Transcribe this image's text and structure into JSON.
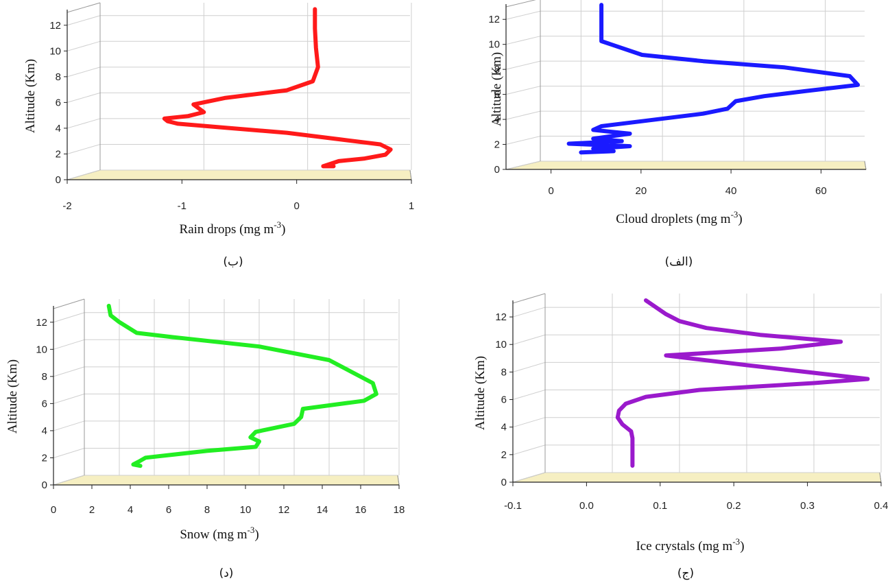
{
  "chart_data": [
    {
      "type": "line",
      "panel_label": "(ب)",
      "xlabel": "Rain drops (mg m",
      "xlabel_sup": "-3",
      "xlabel_close": ")",
      "ylabel": "Altitude (Km)",
      "xlim": [
        -2,
        1
      ],
      "ylim": [
        0,
        13
      ],
      "xticks": [
        "-2",
        "-1",
        "0",
        "1"
      ],
      "xtick_values": [
        -2,
        -1,
        0,
        1
      ],
      "yticks": [
        "0",
        "2",
        "4",
        "6",
        "8",
        "10",
        "12"
      ],
      "ytick_values": [
        0,
        2,
        4,
        6,
        8,
        10,
        12
      ],
      "line_color": "#ff1a1a",
      "series": [
        {
          "x": [
            0.25,
            0.15,
            0.3,
            0.55,
            0.75,
            0.8,
            0.7,
            0.3,
            -0.2,
            -0.8,
            -1.25,
            -1.35,
            -1.38,
            -1.15,
            -1.0,
            -1.1,
            -0.8,
            -0.2,
            0.05,
            0.1,
            0.08,
            0.07,
            0.07
          ],
          "y": [
            0.3,
            0.3,
            0.7,
            0.9,
            1.2,
            1.6,
            2.0,
            2.4,
            2.9,
            3.3,
            3.6,
            3.8,
            4.0,
            4.2,
            4.5,
            5.1,
            5.6,
            6.2,
            6.9,
            8.0,
            9.5,
            11.0,
            12.5
          ]
        }
      ]
    },
    {
      "type": "line",
      "panel_label": "(الف)",
      "xlabel": "Cloud droplets (mg m",
      "xlabel_sup": "-3",
      "xlabel_close": ")",
      "ylabel": "Altitude (Km)",
      "xlim": [
        -10,
        70
      ],
      "ylim": [
        0,
        13
      ],
      "xticks": [
        "0",
        "20",
        "40",
        "60"
      ],
      "xtick_values": [
        0,
        20,
        40,
        60
      ],
      "yticks": [
        "0",
        "2",
        "4",
        "6",
        "8",
        "10",
        "12"
      ],
      "ytick_values": [
        0,
        2,
        4,
        6,
        8,
        10,
        12
      ],
      "line_color": "#1a1aff",
      "series": [
        {
          "x": [
            0,
            8,
            3,
            12,
            -3,
            10,
            3,
            12,
            3,
            5,
            15,
            30,
            36,
            38,
            45,
            55,
            68,
            66,
            50,
            30,
            15,
            5,
            5,
            5
          ],
          "y": [
            0.7,
            0.8,
            1.0,
            1.2,
            1.4,
            1.6,
            1.8,
            2.2,
            2.5,
            2.8,
            3.2,
            3.8,
            4.2,
            4.8,
            5.2,
            5.6,
            6.1,
            6.8,
            7.5,
            8.0,
            8.5,
            9.6,
            11.0,
            12.5
          ]
        }
      ]
    },
    {
      "type": "line",
      "panel_label": "(د)",
      "xlabel": "Snow (mg m",
      "xlabel_sup": "-3",
      "xlabel_close": ")",
      "ylabel": "Altitude (Km)",
      "xlim": [
        0,
        18
      ],
      "ylim": [
        0,
        13
      ],
      "xticks": [
        "0",
        "2",
        "4",
        "6",
        "8",
        "10",
        "12",
        "14",
        "16",
        "18"
      ],
      "xtick_values": [
        0,
        2,
        4,
        6,
        8,
        10,
        12,
        14,
        16,
        18
      ],
      "yticks": [
        "0",
        "2",
        "4",
        "6",
        "8",
        "10",
        "12"
      ],
      "ytick_values": [
        0,
        2,
        4,
        6,
        8,
        10,
        12
      ],
      "line_color": "#22ee22",
      "series": [
        {
          "x": [
            3.2,
            2.8,
            3.1,
            3.5,
            7.0,
            9.8,
            10.0,
            9.5,
            9.8,
            12.0,
            12.4,
            12.5,
            16.0,
            16.7,
            16.5,
            14.0,
            10.0,
            5.0,
            3.0,
            2.0,
            1.5,
            1.4
          ],
          "y": [
            0.7,
            0.8,
            1.0,
            1.3,
            1.8,
            2.1,
            2.5,
            2.8,
            3.2,
            3.8,
            4.3,
            4.9,
            5.5,
            6.0,
            6.8,
            8.5,
            9.5,
            10.2,
            10.5,
            11.3,
            11.8,
            12.5
          ]
        }
      ]
    },
    {
      "type": "line",
      "panel_label": "(ج)",
      "xlabel": "Ice crystals (mg m",
      "xlabel_sup": "-3",
      "xlabel_close": ")",
      "ylabel": "Altitude (Km)",
      "xlim": [
        -0.1,
        0.4
      ],
      "ylim": [
        0,
        13
      ],
      "xticks": [
        "-0.1",
        "0.0",
        "0.1",
        "0.2",
        "0.3",
        "0.4"
      ],
      "xtick_values": [
        -0.1,
        0.0,
        0.1,
        0.2,
        0.3,
        0.4
      ],
      "yticks": [
        "0",
        "2",
        "4",
        "6",
        "8",
        "10",
        "12"
      ],
      "ytick_values": [
        0,
        2,
        4,
        6,
        8,
        10,
        12
      ],
      "line_color": "#9a1acc",
      "series": [
        {
          "x": [
            0.03,
            0.03,
            0.03,
            0.028,
            0.015,
            0.008,
            0.01,
            0.02,
            0.05,
            0.13,
            0.3,
            0.38,
            0.2,
            0.08,
            0.25,
            0.34,
            0.22,
            0.14,
            0.1,
            0.08,
            0.05
          ],
          "y": [
            0.5,
            1.5,
            2.5,
            3.0,
            3.5,
            4.0,
            4.5,
            5.0,
            5.5,
            6.0,
            6.5,
            6.8,
            7.8,
            8.5,
            9.0,
            9.5,
            10.0,
            10.5,
            11.0,
            11.5,
            12.5
          ]
        }
      ]
    }
  ]
}
